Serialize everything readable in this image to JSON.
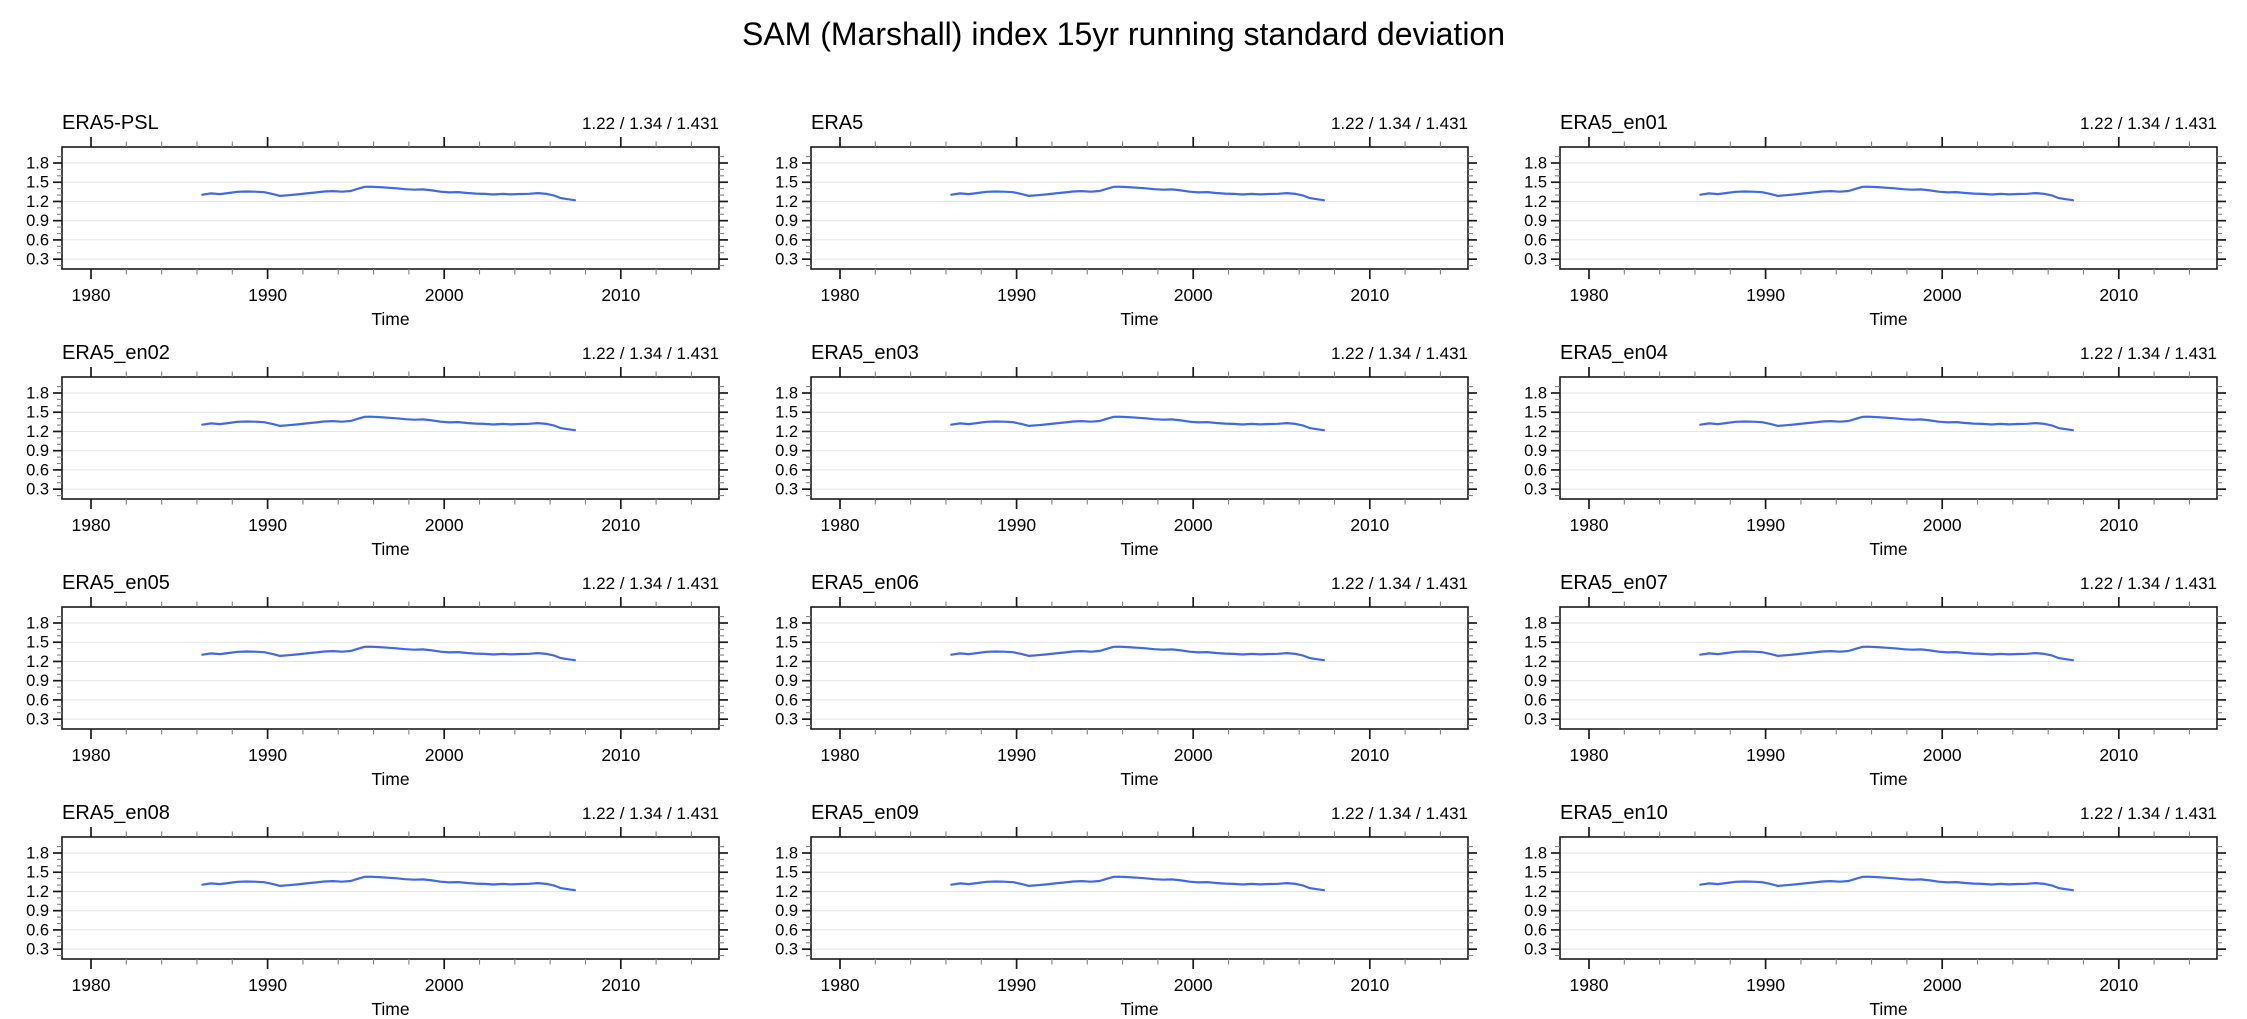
{
  "page_title": "SAM (Marshall) index 15yr running standard deviation",
  "chart_data": {
    "type": "line",
    "title": "SAM (Marshall) index 15yr running standard deviation",
    "layout": "12 small-multiple panels in 4 rows x 3 columns, identical axes",
    "xlabel": "Time",
    "ylabel": "",
    "xlim": [
      1978.4,
      2015.6
    ],
    "ylim": [
      0.15,
      2.05
    ],
    "x_ticks": [
      1980,
      1990,
      2000,
      2010
    ],
    "x_minor_ticks": [
      1982,
      1984,
      1986,
      1988,
      1992,
      1994,
      1996,
      1998,
      2002,
      2004,
      2006,
      2008,
      2012,
      2014
    ],
    "y_ticks": [
      1.8,
      1.5,
      1.2,
      0.9,
      0.6,
      0.3
    ],
    "y_minor_ticks": [
      0.2,
      0.4,
      0.5,
      0.7,
      0.8,
      1.0,
      1.1,
      1.3,
      1.4,
      1.6,
      1.7,
      1.9
    ],
    "grid": "horizontal light-gray gridlines at major y ticks only",
    "legend": "none",
    "line_color": "#4169e1",
    "grid_color": "#e4e4e4",
    "axis_color": "#1a1a1a",
    "minor_tick_color": "#828282",
    "x": [
      1986.3,
      1986.8,
      1987.3,
      1987.8,
      1988.3,
      1988.8,
      1989.3,
      1989.8,
      1990.3,
      1990.7,
      1991.2,
      1991.7,
      1992.2,
      1992.7,
      1993.2,
      1993.7,
      1994.2,
      1994.7,
      1995.1,
      1995.5,
      1995.8,
      1996.3,
      1996.8,
      1997.3,
      1997.8,
      1998.3,
      1998.8,
      1999.3,
      1999.8,
      2000.3,
      2000.8,
      2001.3,
      2001.8,
      2002.3,
      2002.8,
      2003.3,
      2003.8,
      2004.3,
      2004.8,
      2005.3,
      2005.8,
      2006.2,
      2006.6,
      2007.0,
      2007.4
    ],
    "y": [
      1.305,
      1.325,
      1.315,
      1.332,
      1.35,
      1.356,
      1.352,
      1.345,
      1.315,
      1.287,
      1.297,
      1.31,
      1.326,
      1.34,
      1.355,
      1.362,
      1.352,
      1.363,
      1.398,
      1.428,
      1.431,
      1.424,
      1.415,
      1.405,
      1.392,
      1.383,
      1.388,
      1.372,
      1.352,
      1.342,
      1.346,
      1.332,
      1.322,
      1.318,
      1.308,
      1.318,
      1.31,
      1.317,
      1.32,
      1.33,
      1.318,
      1.295,
      1.252,
      1.235,
      1.22
    ],
    "stats_values": {
      "min": 1.22,
      "mean": 1.34,
      "max": 1.431
    },
    "panels": [
      {
        "label": "ERA5-PSL",
        "stats": "1.22 / 1.34 / 1.431"
      },
      {
        "label": "ERA5",
        "stats": "1.22 / 1.34 / 1.431"
      },
      {
        "label": "ERA5_en01",
        "stats": "1.22 / 1.34 / 1.431"
      },
      {
        "label": "ERA5_en02",
        "stats": "1.22 / 1.34 / 1.431"
      },
      {
        "label": "ERA5_en03",
        "stats": "1.22 / 1.34 / 1.431"
      },
      {
        "label": "ERA5_en04",
        "stats": "1.22 / 1.34 / 1.431"
      },
      {
        "label": "ERA5_en05",
        "stats": "1.22 / 1.34 / 1.431"
      },
      {
        "label": "ERA5_en06",
        "stats": "1.22 / 1.34 / 1.431"
      },
      {
        "label": "ERA5_en07",
        "stats": "1.22 / 1.34 / 1.431"
      },
      {
        "label": "ERA5_en08",
        "stats": "1.22 / 1.34 / 1.431"
      },
      {
        "label": "ERA5_en09",
        "stats": "1.22 / 1.34 / 1.431"
      },
      {
        "label": "ERA5_en10",
        "stats": "1.22 / 1.34 / 1.431"
      }
    ]
  }
}
